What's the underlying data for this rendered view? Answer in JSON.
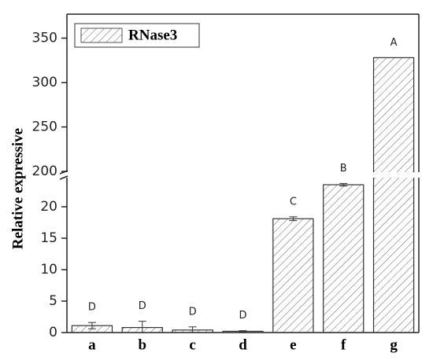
{
  "chart_data": {
    "type": "bar",
    "ylabel": "Relative expressive",
    "categories": [
      "a",
      "b",
      "c",
      "d",
      "e",
      "f",
      "g"
    ],
    "series": [
      {
        "name": "RNase3",
        "color": "#555555",
        "values": [
          1.1,
          0.8,
          0.4,
          0.2,
          18.1,
          23.5,
          328
        ],
        "errors": [
          0.5,
          1.0,
          0.5,
          0.1,
          0.3,
          0.2,
          0
        ]
      }
    ],
    "annotations": [
      "D",
      "D",
      "D",
      "D",
      "C",
      "B",
      "A"
    ],
    "ylim": [
      0,
      377
    ],
    "axis_break": [
      24.5,
      200
    ],
    "yticks": [
      0,
      5,
      10,
      15,
      20,
      200,
      250,
      300,
      350
    ],
    "legend": "upper-left",
    "hatch": true
  }
}
